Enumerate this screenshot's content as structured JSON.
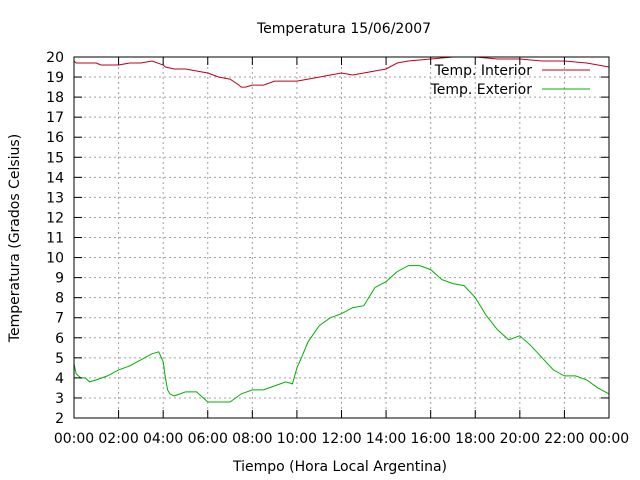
{
  "chart_data": {
    "type": "line",
    "title": "Temperatura 15/06/2007",
    "xlabel": "Tiempo (Hora Local Argentina)",
    "ylabel": "Temperatura (Grados Celsius)",
    "xlim": [
      0,
      24
    ],
    "ylim": [
      2,
      20
    ],
    "x_tick_values": [
      0,
      2,
      4,
      6,
      8,
      10,
      12,
      14,
      16,
      18,
      20,
      22,
      24
    ],
    "x_tick_labels": [
      "00:00",
      "02:00",
      "04:00",
      "06:00",
      "08:00",
      "10:00",
      "12:00",
      "14:00",
      "16:00",
      "18:00",
      "20:00",
      "22:00",
      "00:00"
    ],
    "y_tick_values": [
      2,
      3,
      4,
      5,
      6,
      7,
      8,
      9,
      10,
      11,
      12,
      13,
      14,
      15,
      16,
      17,
      18,
      19,
      20
    ],
    "y_tick_labels": [
      "2",
      "3",
      "4",
      "5",
      "6",
      "7",
      "8",
      "9",
      "10",
      "11",
      "12",
      "13",
      "14",
      "15",
      "16",
      "17",
      "18",
      "19",
      "20"
    ],
    "grid": true,
    "legend_position": "top-right",
    "series": [
      {
        "name": "Temp. Interior",
        "color": "#c0001c",
        "x": [
          0,
          0.1,
          1,
          1.2,
          2,
          2.5,
          3,
          3.5,
          4,
          4.1,
          4.5,
          5,
          5.5,
          6,
          6.5,
          7,
          7.4,
          7.5,
          7.7,
          8,
          8.5,
          9,
          10,
          10.5,
          11,
          11.5,
          12,
          12.5,
          13,
          13.5,
          14,
          14.5,
          15,
          16,
          17,
          18,
          19,
          20,
          21,
          22,
          23,
          23.5,
          24
        ],
        "y": [
          19.8,
          19.7,
          19.7,
          19.6,
          19.6,
          19.7,
          19.7,
          19.8,
          19.6,
          19.5,
          19.4,
          19.4,
          19.3,
          19.2,
          19.0,
          18.9,
          18.6,
          18.5,
          18.5,
          18.6,
          18.6,
          18.8,
          18.8,
          18.9,
          19.0,
          19.1,
          19.2,
          19.1,
          19.2,
          19.3,
          19.4,
          19.7,
          19.8,
          19.9,
          20.0,
          20.0,
          19.9,
          19.9,
          19.8,
          19.8,
          19.7,
          19.6,
          19.5
        ]
      },
      {
        "name": "Temp. Exterior",
        "color": "#00b000",
        "x": [
          0,
          0.1,
          0.3,
          0.5,
          0.7,
          1,
          1.5,
          2,
          2.5,
          3,
          3.5,
          3.8,
          4,
          4.1,
          4.2,
          4.3,
          4.5,
          5,
          5.5,
          6,
          6.5,
          7,
          7.5,
          8,
          8.5,
          9,
          9.5,
          9.8,
          10,
          10.2,
          10.5,
          11,
          11.5,
          12,
          12.5,
          13,
          13.5,
          14,
          14.5,
          15,
          15.5,
          16,
          16.5,
          17,
          17.5,
          18,
          18.5,
          19,
          19.5,
          20,
          20.5,
          21,
          21.5,
          22,
          22.5,
          23,
          23.5,
          24
        ],
        "y": [
          4.7,
          4.2,
          4.0,
          4.0,
          3.8,
          3.9,
          4.1,
          4.4,
          4.6,
          4.9,
          5.2,
          5.3,
          4.8,
          4.0,
          3.4,
          3.2,
          3.1,
          3.3,
          3.3,
          2.8,
          2.8,
          2.8,
          3.2,
          3.4,
          3.4,
          3.6,
          3.8,
          3.7,
          4.5,
          5.0,
          5.8,
          6.6,
          7.0,
          7.2,
          7.5,
          7.6,
          8.5,
          8.8,
          9.3,
          9.6,
          9.6,
          9.4,
          8.9,
          8.7,
          8.6,
          8.0,
          7.1,
          6.4,
          5.9,
          6.1,
          5.6,
          5.0,
          4.4,
          4.1,
          4.1,
          3.9,
          3.5,
          3.2
        ]
      }
    ]
  }
}
